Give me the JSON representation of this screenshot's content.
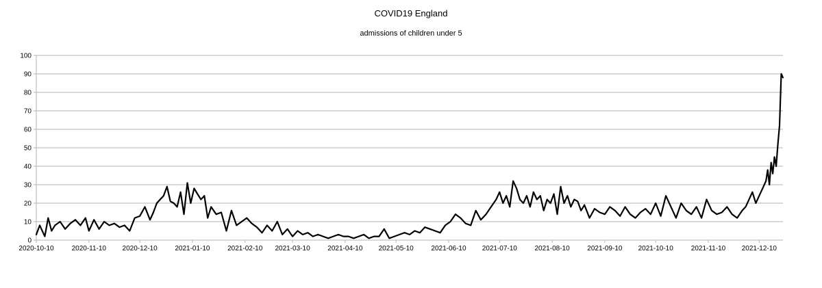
{
  "chart_data": {
    "type": "line",
    "title": "COVID19 England",
    "subtitle": "admissions of children under 5",
    "xlabel": "",
    "ylabel": "",
    "ylim": [
      0,
      100
    ],
    "y_ticks": [
      "0",
      "10",
      "20",
      "30",
      "40",
      "50",
      "60",
      "70",
      "80",
      "90",
      "100"
    ],
    "x_range": [
      "2020-10-10",
      "2021-12-24"
    ],
    "x_ticks": [
      "2020-10-10",
      "2020-11-10",
      "2020-12-10",
      "2021-01-10",
      "2021-02-10",
      "2021-03-10",
      "2021-04-10",
      "2021-05-10",
      "2021-06-10",
      "2021-07-10",
      "2021-08-10",
      "2021-09-10",
      "2021-10-10",
      "2021-11-10",
      "2021-12-10"
    ],
    "grid": "horizontal",
    "legend": "none",
    "line_color": "#000000",
    "series": [
      {
        "x": [
          "2020-10-10",
          "2020-10-12",
          "2020-10-15",
          "2020-10-17",
          "2020-10-19",
          "2020-10-21",
          "2020-10-24",
          "2020-10-27",
          "2020-10-30",
          "2020-11-02",
          "2020-11-05",
          "2020-11-08",
          "2020-11-10",
          "2020-11-13",
          "2020-11-16",
          "2020-11-19",
          "2020-11-22",
          "2020-11-25",
          "2020-11-28",
          "2020-12-01",
          "2020-12-04",
          "2020-12-07",
          "2020-12-10",
          "2020-12-13",
          "2020-12-16",
          "2020-12-18",
          "2020-12-20",
          "2020-12-22",
          "2020-12-24",
          "2020-12-26",
          "2020-12-28",
          "2020-12-30",
          "2021-01-01",
          "2021-01-03",
          "2021-01-05",
          "2021-01-07",
          "2021-01-09",
          "2021-01-11",
          "2021-01-13",
          "2021-01-15",
          "2021-01-17",
          "2021-01-19",
          "2021-01-21",
          "2021-01-24",
          "2021-01-27",
          "2021-01-30",
          "2021-02-02",
          "2021-02-05",
          "2021-02-08",
          "2021-02-11",
          "2021-02-14",
          "2021-02-17",
          "2021-02-20",
          "2021-02-23",
          "2021-02-26",
          "2021-03-01",
          "2021-03-04",
          "2021-03-07",
          "2021-03-10",
          "2021-03-13",
          "2021-03-16",
          "2021-03-19",
          "2021-03-22",
          "2021-03-25",
          "2021-03-28",
          "2021-03-31",
          "2021-04-03",
          "2021-04-06",
          "2021-04-09",
          "2021-04-12",
          "2021-04-15",
          "2021-04-18",
          "2021-04-21",
          "2021-04-24",
          "2021-04-27",
          "2021-04-30",
          "2021-05-03",
          "2021-05-06",
          "2021-05-09",
          "2021-05-12",
          "2021-05-15",
          "2021-05-18",
          "2021-05-21",
          "2021-05-24",
          "2021-05-27",
          "2021-05-30",
          "2021-06-02",
          "2021-06-05",
          "2021-06-08",
          "2021-06-11",
          "2021-06-14",
          "2021-06-17",
          "2021-06-20",
          "2021-06-23",
          "2021-06-26",
          "2021-06-29",
          "2021-07-02",
          "2021-07-05",
          "2021-07-08",
          "2021-07-10",
          "2021-07-12",
          "2021-07-14",
          "2021-07-16",
          "2021-07-18",
          "2021-07-20",
          "2021-07-22",
          "2021-07-24",
          "2021-07-26",
          "2021-07-28",
          "2021-07-30",
          "2021-08-01",
          "2021-08-03",
          "2021-08-05",
          "2021-08-07",
          "2021-08-09",
          "2021-08-11",
          "2021-08-13",
          "2021-08-15",
          "2021-08-17",
          "2021-08-19",
          "2021-08-21",
          "2021-08-23",
          "2021-08-25",
          "2021-08-27",
          "2021-08-29",
          "2021-09-01",
          "2021-09-04",
          "2021-09-07",
          "2021-09-10",
          "2021-09-13",
          "2021-09-16",
          "2021-09-19",
          "2021-09-22",
          "2021-09-25",
          "2021-09-28",
          "2021-10-01",
          "2021-10-04",
          "2021-10-07",
          "2021-10-10",
          "2021-10-13",
          "2021-10-16",
          "2021-10-19",
          "2021-10-22",
          "2021-10-25",
          "2021-10-28",
          "2021-10-31",
          "2021-11-03",
          "2021-11-06",
          "2021-11-09",
          "2021-11-12",
          "2021-11-15",
          "2021-11-18",
          "2021-11-21",
          "2021-11-24",
          "2021-11-27",
          "2021-11-30",
          "2021-12-02",
          "2021-12-04",
          "2021-12-06",
          "2021-12-08",
          "2021-12-10",
          "2021-12-12",
          "2021-12-14",
          "2021-12-15",
          "2021-12-16",
          "2021-12-17",
          "2021-12-18",
          "2021-12-19",
          "2021-12-20",
          "2021-12-21",
          "2021-12-22",
          "2021-12-23",
          "2021-12-24"
        ],
        "values": [
          3,
          8,
          2,
          12,
          5,
          8,
          10,
          6,
          9,
          11,
          8,
          12,
          5,
          11,
          6,
          10,
          8,
          9,
          7,
          8,
          5,
          12,
          13,
          18,
          11,
          15,
          20,
          22,
          24,
          29,
          21,
          20,
          18,
          26,
          14,
          31,
          20,
          28,
          25,
          22,
          24,
          12,
          18,
          14,
          15,
          5,
          16,
          8,
          10,
          12,
          9,
          7,
          4,
          8,
          5,
          10,
          3,
          6,
          2,
          5,
          3,
          4,
          2,
          3,
          2,
          1,
          2,
          3,
          2,
          2,
          1,
          2,
          3,
          1,
          2,
          2,
          6,
          1,
          2,
          3,
          4,
          3,
          5,
          4,
          7,
          6,
          5,
          4,
          8,
          10,
          14,
          12,
          9,
          8,
          16,
          11,
          14,
          18,
          22,
          26,
          20,
          24,
          18,
          32,
          28,
          22,
          20,
          24,
          18,
          26,
          22,
          24,
          16,
          22,
          20,
          25,
          14,
          29,
          20,
          24,
          18,
          22,
          21,
          16,
          19,
          12,
          17,
          15,
          14,
          18,
          16,
          13,
          18,
          14,
          12,
          15,
          17,
          14,
          20,
          13,
          24,
          18,
          12,
          20,
          16,
          14,
          18,
          12,
          22,
          16,
          14,
          15,
          18,
          14,
          12,
          16,
          18,
          22,
          26,
          20,
          24,
          28,
          32,
          38,
          30,
          42,
          36,
          45,
          40,
          52,
          62,
          90,
          88
        ]
      }
    ]
  }
}
